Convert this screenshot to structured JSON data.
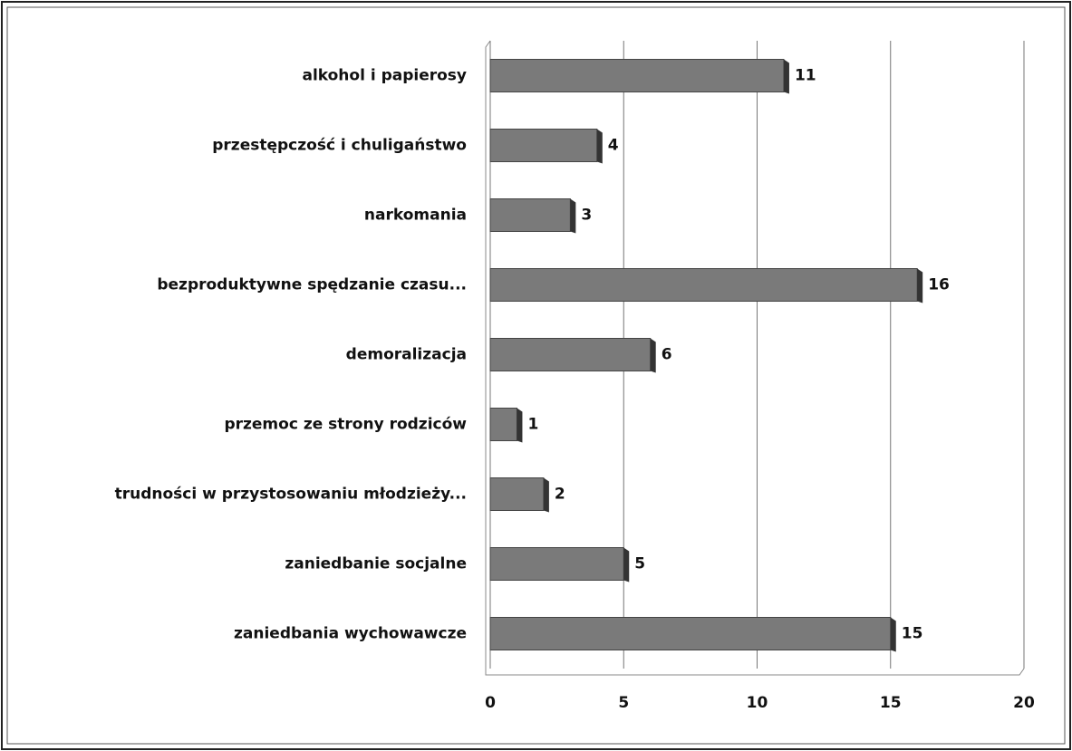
{
  "chart_data": {
    "type": "bar",
    "orientation": "horizontal",
    "categories": [
      "alkohol i papierosy",
      "przestępczość i chuligaństwo",
      "narkomania",
      "bezproduktywne spędzanie czasu...",
      "demoralizacja",
      "przemoc ze strony rodziców",
      "trudności w przystosowaniu młodzieży...",
      "zaniedbanie socjalne",
      "zaniedbania wychowawcze"
    ],
    "values": [
      11,
      4,
      3,
      16,
      6,
      1,
      2,
      5,
      15
    ],
    "color": "#7a7a7a",
    "xlim": [
      0,
      20
    ],
    "xticks": [
      0,
      5,
      10,
      15,
      20
    ],
    "grid": true
  }
}
